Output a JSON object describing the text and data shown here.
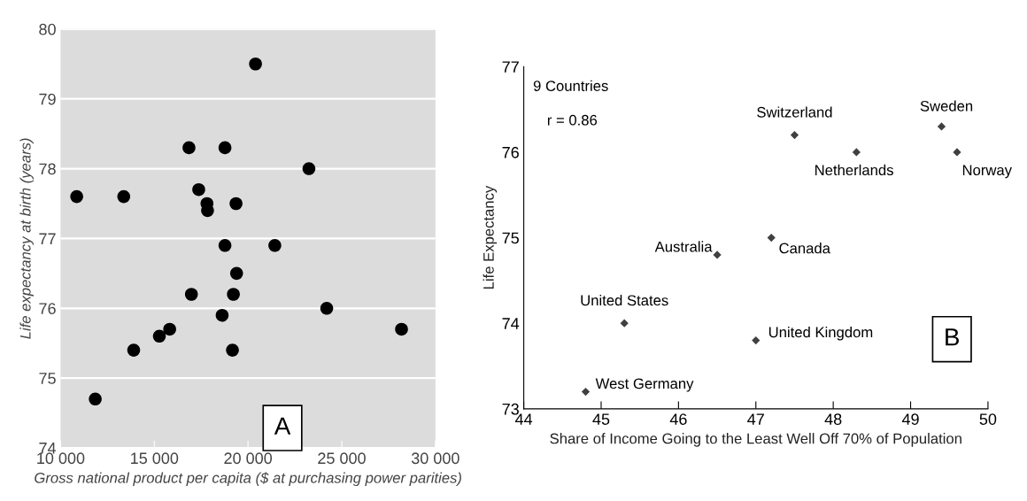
{
  "chart_data": [
    {
      "type": "scatter",
      "xlabel": "Gross national product per capita ($ at purchasing power parities)",
      "ylabel": "Life expectancy at birth (years)",
      "x": [
        20400,
        16850,
        18770,
        23250,
        10860,
        13370,
        17370,
        17810,
        19360,
        17840,
        18770,
        21430,
        19390,
        16980,
        19220,
        24200,
        18620,
        15820,
        15270,
        13900,
        19170,
        28190,
        11850
      ],
      "series": [
        {
          "color": "#000000",
          "values": [
            79.5,
            78.3,
            78.3,
            78.0,
            77.6,
            77.6,
            77.7,
            77.5,
            77.5,
            77.4,
            76.9,
            76.9,
            76.5,
            76.2,
            76.2,
            76.0,
            75.9,
            75.7,
            75.6,
            75.4,
            75.4,
            75.7,
            74.7
          ]
        }
      ],
      "xlim": [
        10000,
        30000
      ],
      "xticks": [
        {
          "value": 10000,
          "label": "10 000"
        },
        {
          "value": 15000,
          "label": "15 000"
        },
        {
          "value": 20000,
          "label": "20 000"
        },
        {
          "value": 25000,
          "label": "25 000"
        },
        {
          "value": 30000,
          "label": "30 000"
        }
      ],
      "ylim": [
        74,
        80
      ],
      "yticks": [
        74,
        75,
        76,
        77,
        78,
        79,
        80
      ],
      "grid": "y",
      "marker": "circle",
      "annotations": [
        "A"
      ]
    },
    {
      "type": "scatter",
      "xlabel": "Share of Income Going to the Least Well Off 70% of Population",
      "ylabel": "Life Expectancy",
      "x": [
        47.5,
        49.4,
        48.3,
        49.6,
        47.2,
        46.5,
        45.3,
        47.0,
        44.8
      ],
      "series": [
        {
          "color": "#404040",
          "values": [
            76.2,
            76.3,
            76.0,
            76.0,
            75.0,
            74.8,
            74.0,
            73.8,
            73.2
          ]
        }
      ],
      "xlim": [
        44,
        50
      ],
      "xticks": [
        44,
        45,
        46,
        47,
        48,
        49,
        50
      ],
      "ylim": [
        73,
        77
      ],
      "yticks": [
        73,
        74,
        75,
        76,
        77
      ],
      "marker": "diamond",
      "annotations": [
        "9 Countries",
        "r = 0.86",
        "B",
        {
          "text": "Switzerland",
          "x": 47.5,
          "y": 76.2
        },
        {
          "text": "Sweden",
          "x": 49.4,
          "y": 76.3
        },
        {
          "text": "Netherlands",
          "x": 48.3,
          "y": 76.0
        },
        {
          "text": "Norway",
          "x": 49.6,
          "y": 76.0
        },
        {
          "text": "Canada",
          "x": 47.2,
          "y": 75.0
        },
        {
          "text": "Australia",
          "x": 46.5,
          "y": 74.8
        },
        {
          "text": "United States",
          "x": 45.3,
          "y": 74.0
        },
        {
          "text": "United Kingdom",
          "x": 47.0,
          "y": 73.8
        },
        {
          "text": "West Germany",
          "x": 44.8,
          "y": 73.2
        }
      ]
    }
  ]
}
